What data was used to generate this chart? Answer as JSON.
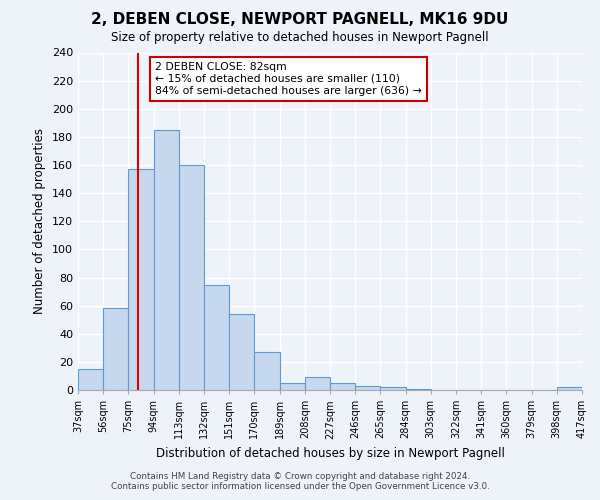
{
  "title": "2, DEBEN CLOSE, NEWPORT PAGNELL, MK16 9DU",
  "subtitle": "Size of property relative to detached houses in Newport Pagnell",
  "xlabel": "Distribution of detached houses by size in Newport Pagnell",
  "ylabel": "Number of detached properties",
  "bar_heights": [
    15,
    58,
    157,
    185,
    160,
    75,
    54,
    27,
    5,
    9,
    5,
    3,
    2,
    1,
    0,
    0,
    0,
    0,
    0,
    2
  ],
  "bin_edges": [
    37,
    56,
    75,
    94,
    113,
    132,
    151,
    170,
    189,
    208,
    227,
    246,
    265,
    284,
    303,
    322,
    341,
    360,
    379,
    398,
    417
  ],
  "tick_labels": [
    "37sqm",
    "56sqm",
    "75sqm",
    "94sqm",
    "113sqm",
    "132sqm",
    "151sqm",
    "170sqm",
    "189sqm",
    "208sqm",
    "227sqm",
    "246sqm",
    "265sqm",
    "284sqm",
    "303sqm",
    "322sqm",
    "341sqm",
    "360sqm",
    "379sqm",
    "398sqm",
    "417sqm"
  ],
  "bar_color": "#c5d8ed",
  "bar_edge_color": "#5b9bd5",
  "vline_x": 82,
  "vline_color": "#dd0000",
  "annotation_title": "2 DEBEN CLOSE: 82sqm",
  "annotation_line1": "← 15% of detached houses are smaller (110)",
  "annotation_line2": "84% of semi-detached houses are larger (636) →",
  "annotation_box_color": "#ffffff",
  "annotation_box_edge": "#cc0000",
  "ylim": [
    0,
    240
  ],
  "yticks": [
    0,
    20,
    40,
    60,
    80,
    100,
    120,
    140,
    160,
    180,
    200,
    220,
    240
  ],
  "footer_line1": "Contains HM Land Registry data © Crown copyright and database right 2024.",
  "footer_line2": "Contains public sector information licensed under the Open Government Licence v3.0.",
  "background_color": "#eef2f9"
}
